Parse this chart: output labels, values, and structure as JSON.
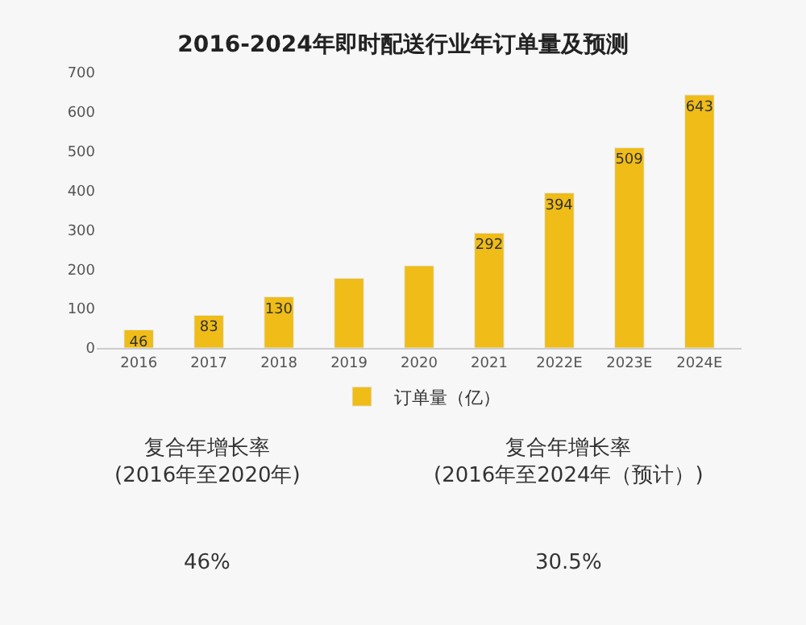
{
  "chart_data": {
    "type": "bar",
    "title": "2016-2024年即时配送行业年订单量及预测",
    "categories": [
      "2016",
      "2017",
      "2018",
      "2019",
      "2020",
      "2021",
      "2022E",
      "2023E",
      "2024E"
    ],
    "series": [
      {
        "name": "订单量（亿）",
        "color": "#efbc18",
        "values": [
          46,
          83,
          130,
          177,
          209,
          292,
          394,
          509,
          643
        ]
      }
    ],
    "value_labels": [
      "46",
      "83",
      "130",
      null,
      null,
      "292",
      "394",
      "509",
      "643"
    ],
    "ylim": [
      0,
      700
    ],
    "yticks": [
      0,
      100,
      200,
      300,
      400,
      500,
      600,
      700
    ],
    "grid": false,
    "legend": "bottom",
    "annotations": [
      "复合年增长率\n(2016年至2020年)",
      "46%",
      "复合年增长率\n(2016年至2024年（预计）)",
      "30.5%"
    ]
  }
}
